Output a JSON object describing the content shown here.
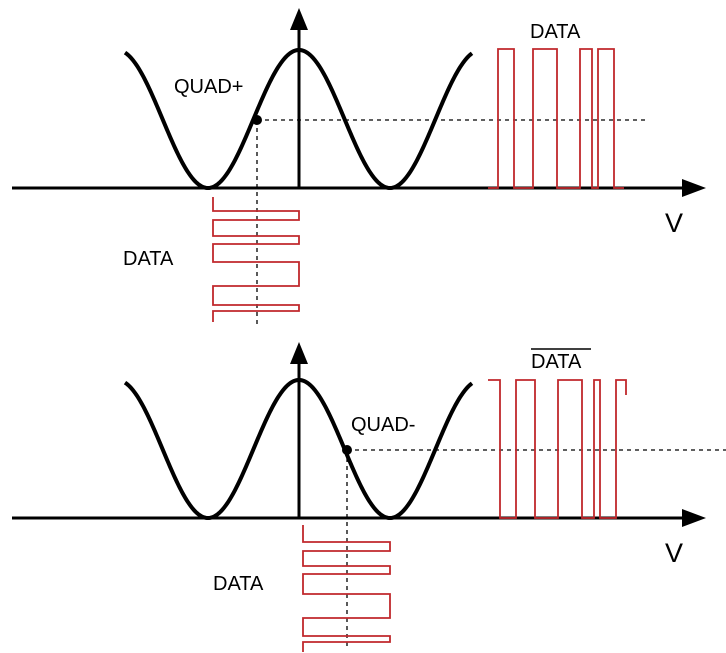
{
  "colors": {
    "curve": "#000000",
    "signal": "#c0282c",
    "axis": "#000000"
  },
  "top_panel": {
    "bias_label": "QUAD+",
    "axis_label": "V",
    "output_label": "DATA",
    "input_label": "DATA",
    "output_overline": false
  },
  "bottom_panel": {
    "bias_label": "QUAD-",
    "axis_label": "V",
    "output_label": "DATA",
    "input_label": "DATA",
    "output_overline": true
  }
}
